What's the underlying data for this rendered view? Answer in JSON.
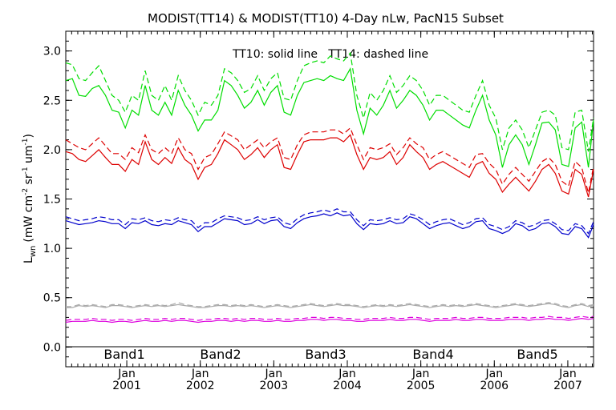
{
  "chart_data": {
    "type": "line",
    "title": "MODIST(TT14) & MODIST(TT10) 4-Day nLw, PacN15 Subset",
    "annotation": "TT10: solid line   TT14: dashed line",
    "ylabel_main": "L",
    "ylabel_sub": "wn",
    "ylabel_units": "(mW cm",
    "ylabel_exp1": "-2",
    "ylabel_mid": " sr",
    "ylabel_exp2": "-1",
    "ylabel_mid2": " um",
    "ylabel_exp3": "-1",
    "ylabel_close": ")",
    "ylim": [
      -0.2,
      3.2
    ],
    "yticks": [
      "0.0",
      "0.5",
      "1.0",
      "1.5",
      "2.0",
      "2.5",
      "3.0"
    ],
    "xlim": [
      2000.17,
      2007.35
    ],
    "xticks": [
      {
        "year": "2001",
        "month": "Jan"
      },
      {
        "year": "2002",
        "month": "Jan"
      },
      {
        "year": "2003",
        "month": "Jan"
      },
      {
        "year": "2004",
        "month": "Jan"
      },
      {
        "year": "2005",
        "month": "Jan"
      },
      {
        "year": "2006",
        "month": "Jan"
      },
      {
        "year": "2007",
        "month": "Jan"
      }
    ],
    "grid": false,
    "legend": "bottom",
    "x": [
      2000.17,
      2000.26,
      2000.35,
      2000.44,
      2000.53,
      2000.62,
      2000.71,
      2000.8,
      2000.89,
      2000.98,
      2001.07,
      2001.16,
      2001.25,
      2001.34,
      2001.43,
      2001.52,
      2001.61,
      2001.7,
      2001.79,
      2001.88,
      2001.97,
      2002.06,
      2002.15,
      2002.24,
      2002.33,
      2002.42,
      2002.51,
      2002.6,
      2002.69,
      2002.78,
      2002.87,
      2002.96,
      2003.05,
      2003.14,
      2003.23,
      2003.32,
      2003.41,
      2003.5,
      2003.59,
      2003.68,
      2003.77,
      2003.86,
      2003.95,
      2004.04,
      2004.13,
      2004.22,
      2004.31,
      2004.4,
      2004.49,
      2004.58,
      2004.67,
      2004.76,
      2004.85,
      2004.94,
      2005.03,
      2005.12,
      2005.21,
      2005.3,
      2005.39,
      2005.48,
      2005.57,
      2005.66,
      2005.75,
      2005.84,
      2005.93,
      2006.02,
      2006.11,
      2006.2,
      2006.29,
      2006.38,
      2006.47,
      2006.56,
      2006.65,
      2006.74,
      2006.83,
      2006.92,
      2007.01,
      2007.1,
      2007.19,
      2007.28,
      2007.35
    ],
    "series": [
      {
        "name": "Band1",
        "color": "#00dd00",
        "solid": [
          2.7,
          2.72,
          2.55,
          2.54,
          2.62,
          2.65,
          2.55,
          2.4,
          2.38,
          2.22,
          2.4,
          2.35,
          2.65,
          2.4,
          2.35,
          2.48,
          2.35,
          2.6,
          2.45,
          2.35,
          2.19,
          2.3,
          2.3,
          2.4,
          2.7,
          2.65,
          2.55,
          2.42,
          2.48,
          2.6,
          2.45,
          2.58,
          2.65,
          2.38,
          2.35,
          2.55,
          2.68,
          2.7,
          2.72,
          2.7,
          2.75,
          2.72,
          2.7,
          2.82,
          2.4,
          2.16,
          2.42,
          2.35,
          2.45,
          2.6,
          2.42,
          2.5,
          2.6,
          2.55,
          2.45,
          2.3,
          2.4,
          2.4,
          2.35,
          2.3,
          2.25,
          2.22,
          2.4,
          2.55,
          2.3,
          2.15,
          1.82,
          2.05,
          2.15,
          2.05,
          1.85,
          2.05,
          2.27,
          2.28,
          2.2,
          1.85,
          1.83,
          2.22,
          2.28,
          1.82,
          2.3
        ],
        "dashed": [
          2.88,
          2.86,
          2.72,
          2.7,
          2.78,
          2.85,
          2.7,
          2.55,
          2.5,
          2.38,
          2.55,
          2.5,
          2.8,
          2.55,
          2.5,
          2.65,
          2.5,
          2.75,
          2.6,
          2.5,
          2.35,
          2.48,
          2.45,
          2.55,
          2.82,
          2.78,
          2.7,
          2.58,
          2.62,
          2.75,
          2.6,
          2.72,
          2.78,
          2.52,
          2.5,
          2.7,
          2.85,
          2.88,
          2.9,
          2.88,
          2.95,
          2.92,
          2.9,
          2.98,
          2.55,
          2.32,
          2.58,
          2.5,
          2.6,
          2.75,
          2.58,
          2.65,
          2.75,
          2.7,
          2.6,
          2.45,
          2.55,
          2.55,
          2.5,
          2.45,
          2.4,
          2.38,
          2.55,
          2.7,
          2.45,
          2.32,
          2.0,
          2.22,
          2.3,
          2.2,
          2.02,
          2.2,
          2.38,
          2.4,
          2.35,
          2.02,
          2.0,
          2.38,
          2.4,
          1.98,
          2.32
        ]
      },
      {
        "name": "Band2",
        "color": "#dd0000",
        "solid": [
          1.98,
          1.96,
          1.9,
          1.88,
          1.94,
          2.0,
          1.92,
          1.85,
          1.85,
          1.78,
          1.9,
          1.85,
          2.08,
          1.9,
          1.85,
          1.92,
          1.86,
          2.02,
          1.9,
          1.85,
          1.7,
          1.82,
          1.85,
          1.96,
          2.1,
          2.05,
          2.0,
          1.9,
          1.95,
          2.02,
          1.92,
          2.0,
          2.05,
          1.82,
          1.8,
          1.95,
          2.08,
          2.1,
          2.1,
          2.1,
          2.12,
          2.12,
          2.08,
          2.15,
          1.95,
          1.8,
          1.92,
          1.9,
          1.92,
          1.98,
          1.85,
          1.92,
          2.05,
          1.98,
          1.92,
          1.8,
          1.85,
          1.88,
          1.84,
          1.8,
          1.76,
          1.72,
          1.85,
          1.88,
          1.76,
          1.7,
          1.57,
          1.65,
          1.72,
          1.65,
          1.58,
          1.68,
          1.8,
          1.85,
          1.76,
          1.58,
          1.55,
          1.8,
          1.75,
          1.52,
          1.8
        ],
        "dashed": [
          2.1,
          2.06,
          2.02,
          2.0,
          2.06,
          2.12,
          2.04,
          1.96,
          1.96,
          1.9,
          2.02,
          1.97,
          2.15,
          2.0,
          1.96,
          2.02,
          1.96,
          2.12,
          2.0,
          1.96,
          1.8,
          1.92,
          1.95,
          2.06,
          2.18,
          2.14,
          2.1,
          2.0,
          2.05,
          2.1,
          2.02,
          2.08,
          2.12,
          1.92,
          1.9,
          2.05,
          2.15,
          2.18,
          2.18,
          2.18,
          2.2,
          2.2,
          2.16,
          2.22,
          2.05,
          1.9,
          2.02,
          2.0,
          2.02,
          2.06,
          1.95,
          2.02,
          2.12,
          2.06,
          2.02,
          1.9,
          1.95,
          1.98,
          1.94,
          1.9,
          1.86,
          1.82,
          1.95,
          1.96,
          1.86,
          1.8,
          1.65,
          1.75,
          1.82,
          1.75,
          1.68,
          1.78,
          1.88,
          1.92,
          1.85,
          1.68,
          1.63,
          1.88,
          1.82,
          1.56,
          1.83
        ]
      },
      {
        "name": "Band3",
        "color": "#0000cc",
        "solid": [
          1.28,
          1.26,
          1.24,
          1.25,
          1.26,
          1.28,
          1.27,
          1.25,
          1.25,
          1.2,
          1.26,
          1.25,
          1.28,
          1.24,
          1.23,
          1.25,
          1.24,
          1.28,
          1.26,
          1.24,
          1.17,
          1.22,
          1.22,
          1.26,
          1.3,
          1.29,
          1.28,
          1.24,
          1.25,
          1.29,
          1.25,
          1.28,
          1.29,
          1.22,
          1.2,
          1.26,
          1.3,
          1.32,
          1.33,
          1.35,
          1.33,
          1.36,
          1.33,
          1.34,
          1.25,
          1.19,
          1.25,
          1.24,
          1.25,
          1.28,
          1.25,
          1.26,
          1.32,
          1.3,
          1.25,
          1.2,
          1.23,
          1.25,
          1.26,
          1.23,
          1.2,
          1.22,
          1.27,
          1.28,
          1.2,
          1.18,
          1.15,
          1.18,
          1.25,
          1.23,
          1.18,
          1.2,
          1.25,
          1.26,
          1.22,
          1.15,
          1.14,
          1.22,
          1.2,
          1.11,
          1.24
        ],
        "dashed": [
          1.32,
          1.3,
          1.28,
          1.29,
          1.3,
          1.32,
          1.31,
          1.29,
          1.29,
          1.24,
          1.3,
          1.29,
          1.31,
          1.28,
          1.27,
          1.29,
          1.28,
          1.31,
          1.29,
          1.28,
          1.21,
          1.26,
          1.26,
          1.3,
          1.33,
          1.32,
          1.31,
          1.28,
          1.29,
          1.32,
          1.29,
          1.31,
          1.32,
          1.26,
          1.24,
          1.3,
          1.34,
          1.36,
          1.37,
          1.39,
          1.37,
          1.4,
          1.37,
          1.37,
          1.29,
          1.23,
          1.29,
          1.28,
          1.29,
          1.31,
          1.29,
          1.3,
          1.35,
          1.33,
          1.29,
          1.24,
          1.27,
          1.29,
          1.3,
          1.27,
          1.24,
          1.26,
          1.3,
          1.31,
          1.24,
          1.22,
          1.19,
          1.22,
          1.28,
          1.26,
          1.22,
          1.24,
          1.28,
          1.29,
          1.25,
          1.19,
          1.18,
          1.25,
          1.23,
          1.15,
          1.27
        ]
      },
      {
        "name": "Band4",
        "color": "#aaaaaa",
        "solid": [
          0.4,
          0.4,
          0.42,
          0.41,
          0.42,
          0.41,
          0.4,
          0.42,
          0.42,
          0.41,
          0.4,
          0.41,
          0.42,
          0.41,
          0.42,
          0.41,
          0.42,
          0.43,
          0.42,
          0.41,
          0.4,
          0.4,
          0.41,
          0.42,
          0.42,
          0.41,
          0.42,
          0.41,
          0.42,
          0.41,
          0.4,
          0.41,
          0.42,
          0.41,
          0.4,
          0.41,
          0.42,
          0.43,
          0.42,
          0.41,
          0.42,
          0.43,
          0.42,
          0.42,
          0.41,
          0.4,
          0.41,
          0.42,
          0.41,
          0.42,
          0.41,
          0.42,
          0.43,
          0.42,
          0.41,
          0.4,
          0.41,
          0.42,
          0.41,
          0.42,
          0.41,
          0.42,
          0.43,
          0.42,
          0.41,
          0.4,
          0.41,
          0.42,
          0.43,
          0.42,
          0.41,
          0.42,
          0.43,
          0.44,
          0.43,
          0.41,
          0.4,
          0.42,
          0.43,
          0.41,
          0.42
        ],
        "dashed": [
          0.41,
          0.41,
          0.43,
          0.42,
          0.43,
          0.42,
          0.41,
          0.43,
          0.43,
          0.42,
          0.41,
          0.42,
          0.43,
          0.42,
          0.43,
          0.42,
          0.43,
          0.45,
          0.43,
          0.42,
          0.41,
          0.41,
          0.42,
          0.43,
          0.43,
          0.42,
          0.43,
          0.42,
          0.43,
          0.42,
          0.41,
          0.42,
          0.43,
          0.42,
          0.41,
          0.42,
          0.43,
          0.44,
          0.43,
          0.42,
          0.43,
          0.44,
          0.43,
          0.43,
          0.42,
          0.41,
          0.42,
          0.43,
          0.42,
          0.43,
          0.42,
          0.43,
          0.44,
          0.43,
          0.42,
          0.41,
          0.42,
          0.43,
          0.42,
          0.43,
          0.42,
          0.43,
          0.44,
          0.43,
          0.42,
          0.41,
          0.42,
          0.43,
          0.44,
          0.43,
          0.42,
          0.43,
          0.44,
          0.45,
          0.44,
          0.42,
          0.41,
          0.43,
          0.44,
          0.42,
          0.43
        ]
      },
      {
        "name": "Band5",
        "color": "#dd00dd",
        "solid": [
          0.25,
          0.26,
          0.26,
          0.26,
          0.27,
          0.26,
          0.26,
          0.25,
          0.26,
          0.26,
          0.25,
          0.26,
          0.27,
          0.26,
          0.26,
          0.27,
          0.26,
          0.27,
          0.27,
          0.26,
          0.25,
          0.26,
          0.26,
          0.27,
          0.27,
          0.26,
          0.27,
          0.26,
          0.27,
          0.27,
          0.26,
          0.26,
          0.27,
          0.26,
          0.26,
          0.27,
          0.27,
          0.28,
          0.28,
          0.27,
          0.28,
          0.28,
          0.27,
          0.27,
          0.26,
          0.26,
          0.27,
          0.27,
          0.27,
          0.28,
          0.27,
          0.27,
          0.28,
          0.28,
          0.27,
          0.26,
          0.27,
          0.27,
          0.27,
          0.28,
          0.27,
          0.27,
          0.28,
          0.28,
          0.27,
          0.27,
          0.27,
          0.28,
          0.28,
          0.28,
          0.27,
          0.28,
          0.28,
          0.29,
          0.28,
          0.28,
          0.27,
          0.28,
          0.29,
          0.28,
          0.29
        ],
        "dashed": [
          0.27,
          0.28,
          0.28,
          0.28,
          0.29,
          0.28,
          0.28,
          0.27,
          0.28,
          0.28,
          0.27,
          0.28,
          0.29,
          0.28,
          0.28,
          0.29,
          0.28,
          0.29,
          0.29,
          0.28,
          0.27,
          0.28,
          0.28,
          0.29,
          0.29,
          0.28,
          0.29,
          0.28,
          0.29,
          0.29,
          0.28,
          0.28,
          0.29,
          0.28,
          0.28,
          0.29,
          0.29,
          0.3,
          0.3,
          0.29,
          0.3,
          0.3,
          0.29,
          0.29,
          0.28,
          0.28,
          0.29,
          0.29,
          0.29,
          0.3,
          0.29,
          0.29,
          0.3,
          0.3,
          0.29,
          0.28,
          0.29,
          0.29,
          0.29,
          0.3,
          0.29,
          0.29,
          0.3,
          0.3,
          0.29,
          0.29,
          0.29,
          0.3,
          0.3,
          0.3,
          0.29,
          0.3,
          0.3,
          0.31,
          0.3,
          0.3,
          0.29,
          0.3,
          0.31,
          0.3,
          0.31
        ]
      }
    ]
  }
}
